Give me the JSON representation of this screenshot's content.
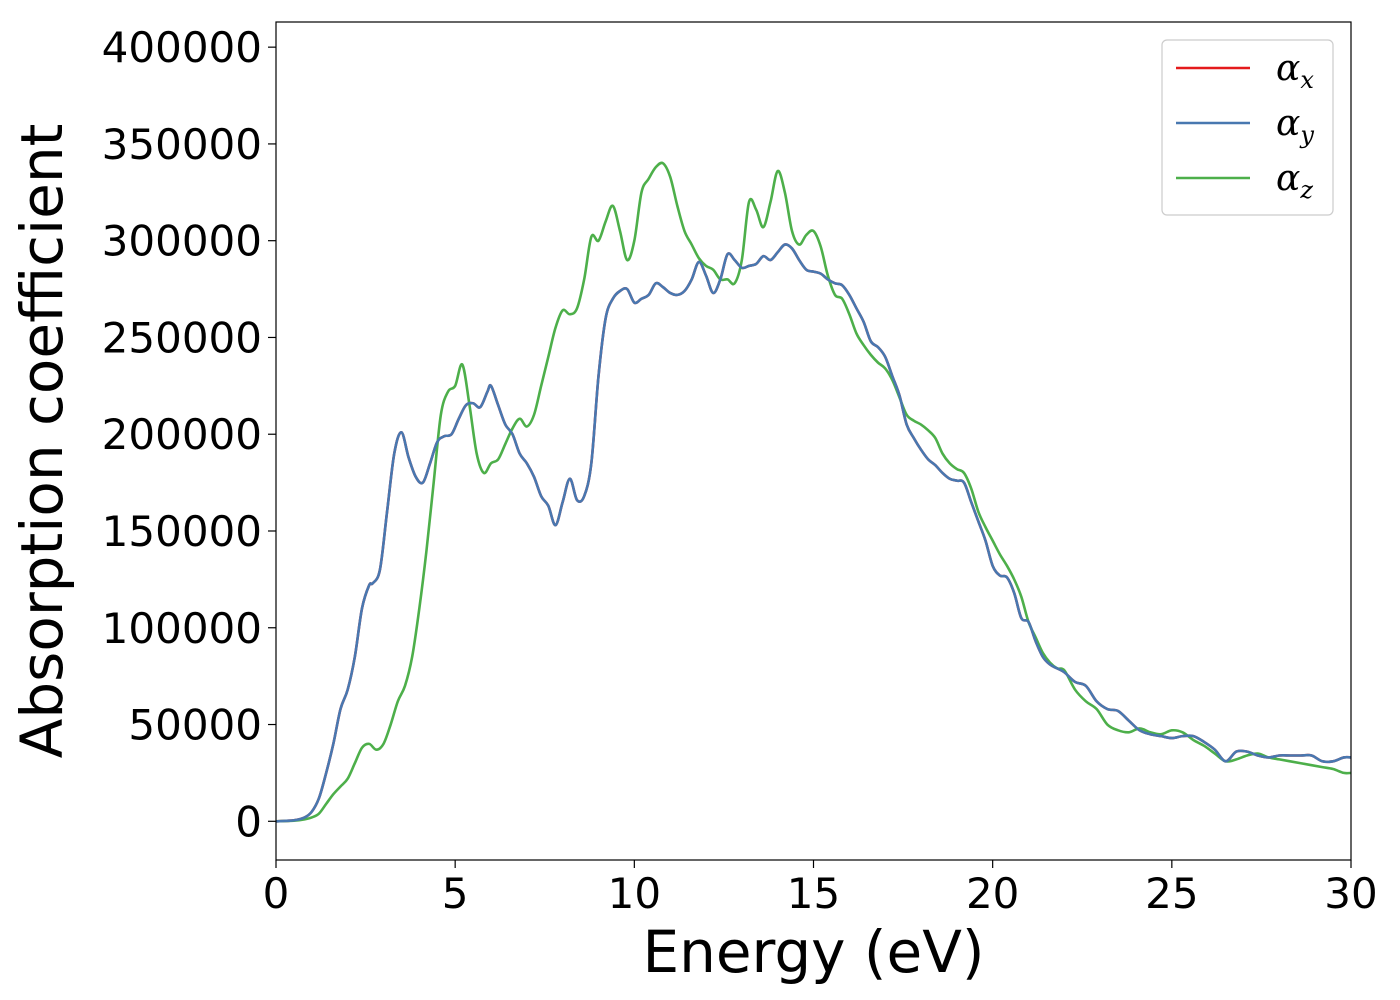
{
  "chart_data": {
    "type": "line",
    "xlabel": "Energy (eV)",
    "ylabel": "Absorption coefficient",
    "xlim": [
      0,
      30
    ],
    "ylim": [
      -20000,
      413000
    ],
    "xticks": [
      0,
      5,
      10,
      15,
      20,
      25,
      30
    ],
    "yticks": [
      0,
      50000,
      100000,
      150000,
      200000,
      250000,
      300000,
      350000,
      400000
    ],
    "grid": false,
    "legend_position": "top-right",
    "series": [
      {
        "name": "α_x",
        "greek": "α",
        "sub": "x",
        "color": "#e41a1c",
        "x": [
          0,
          0.5,
          0.8,
          1.0,
          1.2,
          1.4,
          1.6,
          1.8,
          2.0,
          2.2,
          2.4,
          2.6,
          2.7,
          2.9,
          3.1,
          3.3,
          3.5,
          3.7,
          3.9,
          4.1,
          4.3,
          4.5,
          4.7,
          4.9,
          5.1,
          5.3,
          5.5,
          5.7,
          5.9,
          6.0,
          6.2,
          6.4,
          6.6,
          6.8,
          7.0,
          7.2,
          7.4,
          7.6,
          7.8,
          8.0,
          8.2,
          8.4,
          8.6,
          8.8,
          9.0,
          9.2,
          9.4,
          9.6,
          9.8,
          10.0,
          10.2,
          10.4,
          10.6,
          10.8,
          11.0,
          11.2,
          11.4,
          11.6,
          11.8,
          12.0,
          12.2,
          12.4,
          12.6,
          12.8,
          13.0,
          13.2,
          13.4,
          13.6,
          13.8,
          14.0,
          14.2,
          14.4,
          14.6,
          14.8,
          15.0,
          15.2,
          15.4,
          15.6,
          15.8,
          16.0,
          16.2,
          16.4,
          16.6,
          16.8,
          17.0,
          17.2,
          17.4,
          17.6,
          17.8,
          18.0,
          18.2,
          18.4,
          18.6,
          18.8,
          19.0,
          19.2,
          19.4,
          19.6,
          19.8,
          20.0,
          20.2,
          20.4,
          20.6,
          20.8,
          21.0,
          21.2,
          21.4,
          21.6,
          21.8,
          22.0,
          22.3,
          22.6,
          22.9,
          23.2,
          23.5,
          23.8,
          24.1,
          24.4,
          24.7,
          25.0,
          25.3,
          25.6,
          25.9,
          26.2,
          26.5,
          26.8,
          27.1,
          27.4,
          27.7,
          28.0,
          28.3,
          28.6,
          28.9,
          29.2,
          29.5,
          29.8,
          30.0
        ],
        "values": [
          0,
          500,
          2000,
          5000,
          12000,
          25000,
          40000,
          58000,
          68000,
          85000,
          110000,
          122000,
          123000,
          130000,
          160000,
          190000,
          201000,
          188000,
          178000,
          175000,
          185000,
          196000,
          199000,
          200000,
          208000,
          215000,
          216000,
          214000,
          222000,
          225000,
          215000,
          205000,
          200000,
          190000,
          185000,
          178000,
          168000,
          163000,
          153000,
          165000,
          177000,
          166000,
          168000,
          185000,
          230000,
          260000,
          270000,
          274000,
          275000,
          268000,
          270000,
          272000,
          278000,
          276000,
          273000,
          272000,
          274000,
          280000,
          289000,
          282000,
          273000,
          280000,
          293000,
          290000,
          286000,
          287000,
          288000,
          292000,
          290000,
          294000,
          298000,
          296000,
          290000,
          285000,
          284000,
          283000,
          280000,
          278000,
          277000,
          272000,
          265000,
          258000,
          248000,
          245000,
          240000,
          230000,
          220000,
          205000,
          198000,
          192000,
          187000,
          184000,
          180000,
          177000,
          176000,
          175000,
          165000,
          155000,
          145000,
          132000,
          127000,
          126000,
          118000,
          105000,
          103000,
          93000,
          85000,
          81000,
          79000,
          77000,
          72000,
          70000,
          62000,
          58000,
          57000,
          52000,
          47000,
          45000,
          44000,
          43000,
          44000,
          44000,
          41000,
          37000,
          31000,
          36000,
          36000,
          34000,
          33000,
          34000,
          34000,
          34000,
          34000,
          31000,
          31000,
          33000,
          33000
        ]
      },
      {
        "name": "α_y",
        "greek": "α",
        "sub": "y",
        "color": "#4878b0",
        "x": [
          0,
          0.5,
          0.8,
          1.0,
          1.2,
          1.4,
          1.6,
          1.8,
          2.0,
          2.2,
          2.4,
          2.6,
          2.7,
          2.9,
          3.1,
          3.3,
          3.5,
          3.7,
          3.9,
          4.1,
          4.3,
          4.5,
          4.7,
          4.9,
          5.1,
          5.3,
          5.5,
          5.7,
          5.9,
          6.0,
          6.2,
          6.4,
          6.6,
          6.8,
          7.0,
          7.2,
          7.4,
          7.6,
          7.8,
          8.0,
          8.2,
          8.4,
          8.6,
          8.8,
          9.0,
          9.2,
          9.4,
          9.6,
          9.8,
          10.0,
          10.2,
          10.4,
          10.6,
          10.8,
          11.0,
          11.2,
          11.4,
          11.6,
          11.8,
          12.0,
          12.2,
          12.4,
          12.6,
          12.8,
          13.0,
          13.2,
          13.4,
          13.6,
          13.8,
          14.0,
          14.2,
          14.4,
          14.6,
          14.8,
          15.0,
          15.2,
          15.4,
          15.6,
          15.8,
          16.0,
          16.2,
          16.4,
          16.6,
          16.8,
          17.0,
          17.2,
          17.4,
          17.6,
          17.8,
          18.0,
          18.2,
          18.4,
          18.6,
          18.8,
          19.0,
          19.2,
          19.4,
          19.6,
          19.8,
          20.0,
          20.2,
          20.4,
          20.6,
          20.8,
          21.0,
          21.2,
          21.4,
          21.6,
          21.8,
          22.0,
          22.3,
          22.6,
          22.9,
          23.2,
          23.5,
          23.8,
          24.1,
          24.4,
          24.7,
          25.0,
          25.3,
          25.6,
          25.9,
          26.2,
          26.5,
          26.8,
          27.1,
          27.4,
          27.7,
          28.0,
          28.3,
          28.6,
          28.9,
          29.2,
          29.5,
          29.8,
          30.0
        ],
        "values": [
          0,
          500,
          2000,
          5000,
          12000,
          25000,
          40000,
          58000,
          68000,
          85000,
          110000,
          122000,
          123000,
          130000,
          160000,
          190000,
          201000,
          188000,
          178000,
          175000,
          185000,
          196000,
          199000,
          200000,
          208000,
          215000,
          216000,
          214000,
          222000,
          225000,
          215000,
          205000,
          200000,
          190000,
          185000,
          178000,
          168000,
          163000,
          153000,
          165000,
          177000,
          166000,
          168000,
          185000,
          230000,
          260000,
          270000,
          274000,
          275000,
          268000,
          270000,
          272000,
          278000,
          276000,
          273000,
          272000,
          274000,
          280000,
          289000,
          282000,
          273000,
          280000,
          293000,
          290000,
          286000,
          287000,
          288000,
          292000,
          290000,
          294000,
          298000,
          296000,
          290000,
          285000,
          284000,
          283000,
          280000,
          278000,
          277000,
          272000,
          265000,
          258000,
          248000,
          245000,
          240000,
          230000,
          220000,
          205000,
          198000,
          192000,
          187000,
          184000,
          180000,
          177000,
          176000,
          175000,
          165000,
          155000,
          145000,
          132000,
          127000,
          126000,
          118000,
          105000,
          103000,
          93000,
          85000,
          81000,
          79000,
          77000,
          72000,
          70000,
          62000,
          58000,
          57000,
          52000,
          47000,
          45000,
          44000,
          43000,
          44000,
          44000,
          41000,
          37000,
          31000,
          36000,
          36000,
          34000,
          33000,
          34000,
          34000,
          34000,
          34000,
          31000,
          31000,
          33000,
          33000
        ]
      },
      {
        "name": "α_z",
        "greek": "α",
        "sub": "z",
        "color": "#4daf4a",
        "x": [
          0,
          0.5,
          0.8,
          1.0,
          1.2,
          1.4,
          1.6,
          1.8,
          2.0,
          2.2,
          2.4,
          2.6,
          2.8,
          3.0,
          3.2,
          3.4,
          3.6,
          3.8,
          4.0,
          4.2,
          4.4,
          4.6,
          4.8,
          5.0,
          5.2,
          5.4,
          5.6,
          5.8,
          6.0,
          6.2,
          6.4,
          6.6,
          6.8,
          7.0,
          7.2,
          7.4,
          7.6,
          7.8,
          8.0,
          8.2,
          8.4,
          8.6,
          8.8,
          9.0,
          9.2,
          9.4,
          9.6,
          9.8,
          10.0,
          10.2,
          10.4,
          10.6,
          10.8,
          11.0,
          11.2,
          11.4,
          11.6,
          11.8,
          12.0,
          12.2,
          12.4,
          12.6,
          12.8,
          13.0,
          13.2,
          13.4,
          13.6,
          13.8,
          14.0,
          14.2,
          14.4,
          14.6,
          14.8,
          15.0,
          15.2,
          15.4,
          15.6,
          15.8,
          16.0,
          16.2,
          16.4,
          16.6,
          16.8,
          17.0,
          17.2,
          17.4,
          17.6,
          17.8,
          18.0,
          18.2,
          18.4,
          18.6,
          18.8,
          19.0,
          19.2,
          19.4,
          19.6,
          19.8,
          20.0,
          20.2,
          20.4,
          20.6,
          20.8,
          21.0,
          21.2,
          21.4,
          21.6,
          21.8,
          22.0,
          22.3,
          22.6,
          22.9,
          23.2,
          23.5,
          23.8,
          24.1,
          24.4,
          24.7,
          25.0,
          25.3,
          25.6,
          25.9,
          26.2,
          26.5,
          26.8,
          27.1,
          27.4,
          27.7,
          28.0,
          28.3,
          28.6,
          28.9,
          29.2,
          29.5,
          29.8,
          30.0
        ],
        "values": [
          0,
          300,
          1000,
          2000,
          4000,
          9000,
          14000,
          18000,
          22000,
          30000,
          38000,
          40000,
          37000,
          40000,
          50000,
          62000,
          70000,
          85000,
          110000,
          140000,
          175000,
          210000,
          222000,
          225000,
          236000,
          215000,
          190000,
          180000,
          185000,
          187000,
          195000,
          203000,
          208000,
          204000,
          210000,
          225000,
          240000,
          255000,
          264000,
          262000,
          265000,
          280000,
          302000,
          300000,
          310000,
          318000,
          305000,
          290000,
          300000,
          325000,
          332000,
          338000,
          340000,
          333000,
          318000,
          305000,
          298000,
          291000,
          287000,
          285000,
          280000,
          280000,
          278000,
          290000,
          320000,
          316000,
          307000,
          320000,
          336000,
          325000,
          305000,
          298000,
          303000,
          305000,
          297000,
          282000,
          272000,
          270000,
          262000,
          252000,
          246000,
          241000,
          237000,
          234000,
          228000,
          219000,
          210000,
          207000,
          205000,
          202000,
          198000,
          190000,
          185000,
          182000,
          180000,
          172000,
          160000,
          152000,
          145000,
          138000,
          132000,
          125000,
          116000,
          103000,
          95000,
          87000,
          82000,
          79000,
          78000,
          68000,
          62000,
          58000,
          50000,
          47000,
          46000,
          48000,
          46000,
          45000,
          47000,
          46000,
          42000,
          39000,
          35000,
          31000,
          32000,
          34000,
          35000,
          33000,
          32000,
          31000,
          30000,
          29000,
          28000,
          27000,
          25000,
          25000
        ]
      }
    ]
  }
}
